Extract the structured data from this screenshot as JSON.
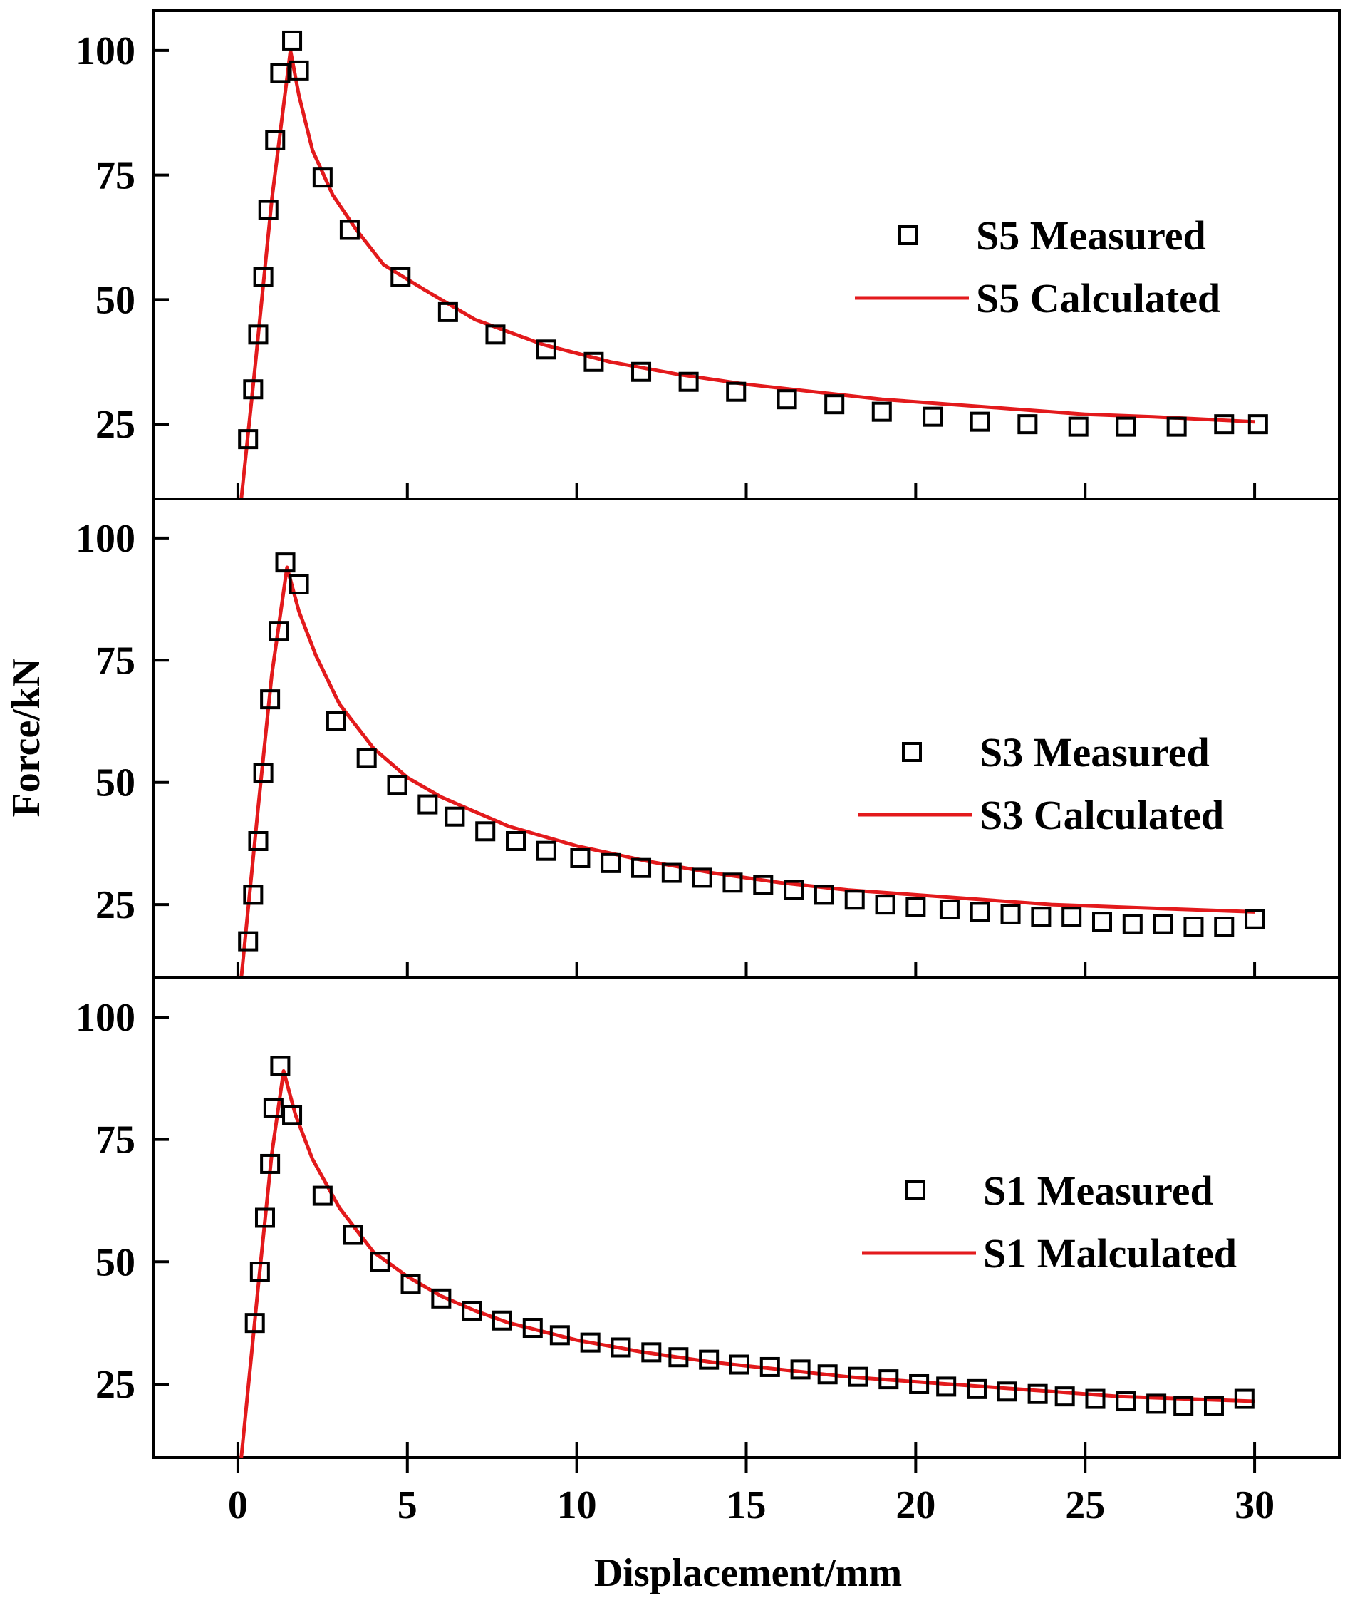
{
  "chart_data": {
    "type": "scatter",
    "xlabel": "Displacement/mm",
    "ylabel": "Force/kN",
    "x_ticks": [
      "0",
      "5",
      "10",
      "15",
      "20",
      "25",
      "30"
    ],
    "y_ticks": [
      "25",
      "50",
      "75",
      "100"
    ],
    "xlim": [
      -2.5,
      32.5
    ],
    "colors": {
      "measured": "#000000",
      "calculated": "#e31a1c"
    },
    "panels": [
      {
        "name": "S5",
        "ylim": [
          10,
          108
        ],
        "legend": {
          "measured": "S5 Measured",
          "calculated": "S5 Calculated"
        },
        "measured": {
          "x": [
            0.3,
            0.45,
            0.6,
            0.75,
            0.9,
            1.1,
            1.25,
            1.6,
            1.8,
            2.5,
            3.3,
            4.8,
            6.2,
            7.6,
            9.1,
            10.5,
            11.9,
            13.3,
            14.7,
            16.2,
            17.6,
            19.0,
            20.5,
            21.9,
            23.3,
            24.8,
            26.2,
            27.7,
            29.1,
            30.1
          ],
          "y": [
            22,
            32,
            43,
            54.5,
            68,
            82,
            95.5,
            102,
            96,
            74.5,
            64,
            54.5,
            47.5,
            43,
            40,
            37.5,
            35.5,
            33.5,
            31.5,
            30,
            29,
            27.5,
            26.5,
            25.5,
            25,
            24.5,
            24.5,
            24.5,
            25,
            25
          ]
        },
        "calculated": {
          "x": [
            0.1,
            0.5,
            1.0,
            1.55,
            1.8,
            2.2,
            2.8,
            3.5,
            4.3,
            5.5,
            7.0,
            9.0,
            11.0,
            13.0,
            15.0,
            17.0,
            19.0,
            21.0,
            23.0,
            25.0,
            27.0,
            30.0
          ],
          "y": [
            10,
            36,
            70,
            100,
            91,
            80,
            71,
            64,
            57,
            52,
            46,
            41,
            37.5,
            35,
            33,
            31.5,
            30,
            29,
            28,
            27,
            26.5,
            25.5
          ]
        }
      },
      {
        "name": "S3",
        "ylim": [
          10,
          108
        ],
        "legend": {
          "measured": "S3  Measured",
          "calculated": "S3  Calculated"
        },
        "measured": {
          "x": [
            0.3,
            0.45,
            0.6,
            0.75,
            0.95,
            1.2,
            1.4,
            1.8,
            2.9,
            3.8,
            4.7,
            5.6,
            6.4,
            7.3,
            8.2,
            9.1,
            10.1,
            11.0,
            11.9,
            12.8,
            13.7,
            14.6,
            15.5,
            16.4,
            17.3,
            18.2,
            19.1,
            20.0,
            21.0,
            21.9,
            22.8,
            23.7,
            24.6,
            25.5,
            26.4,
            27.3,
            28.2,
            29.1,
            30.0
          ],
          "y": [
            17.5,
            27,
            38,
            52,
            67,
            81,
            95,
            90.5,
            62.5,
            55,
            49.5,
            45.5,
            43,
            40,
            38,
            36,
            34.5,
            33.5,
            32.5,
            31.5,
            30.5,
            29.5,
            29,
            28,
            27,
            26,
            25,
            24.5,
            24,
            23.5,
            23,
            22.5,
            22.5,
            21.5,
            21,
            21,
            20.5,
            20.5,
            22
          ]
        },
        "calculated": {
          "x": [
            0.1,
            0.6,
            1.0,
            1.45,
            1.8,
            2.3,
            3.0,
            4.0,
            5.0,
            6.0,
            7.0,
            8.0,
            10.0,
            12.0,
            14.0,
            16.0,
            18.0,
            20.0,
            22.0,
            24.0,
            26.0,
            28.0,
            30.0
          ],
          "y": [
            10,
            45,
            72,
            94,
            85,
            76,
            66,
            57,
            51,
            47,
            44,
            41,
            37,
            34,
            31.5,
            29.5,
            28,
            27,
            26,
            25,
            24.5,
            24,
            23.5
          ]
        }
      },
      {
        "name": "S1",
        "ylim": [
          10,
          108
        ],
        "legend": {
          "measured": "S1 Measured",
          "calculated": "S1 Malculated"
        },
        "measured": {
          "x": [
            0.5,
            0.65,
            0.8,
            0.95,
            1.05,
            1.25,
            1.6,
            2.5,
            3.4,
            4.2,
            5.1,
            6.0,
            6.9,
            7.8,
            8.7,
            9.5,
            10.4,
            11.3,
            12.2,
            13.0,
            13.9,
            14.8,
            15.7,
            16.6,
            17.4,
            18.3,
            19.2,
            20.1,
            20.9,
            21.8,
            22.7,
            23.6,
            24.4,
            25.3,
            26.2,
            27.1,
            27.9,
            28.8,
            29.7
          ],
          "y": [
            37.5,
            48,
            59,
            70,
            81.5,
            90,
            80,
            63.5,
            55.5,
            50,
            45.5,
            42.5,
            40,
            38,
            36.5,
            35,
            33.5,
            32.5,
            31.5,
            30.5,
            30,
            29,
            28.5,
            28,
            27,
            26.5,
            26,
            25,
            24.5,
            24,
            23.5,
            23,
            22.5,
            22,
            21.5,
            21,
            20.5,
            20.5,
            22
          ]
        },
        "calculated": {
          "x": [
            0.1,
            0.6,
            1.0,
            1.35,
            1.7,
            2.2,
            3.0,
            4.0,
            5.0,
            6.0,
            7.0,
            8.0,
            10.0,
            12.0,
            14.0,
            16.0,
            18.0,
            20.0,
            22.0,
            24.0,
            26.0,
            28.0,
            30.0
          ],
          "y": [
            10,
            45,
            72,
            89,
            80,
            71,
            61,
            52,
            47,
            43,
            40,
            37.5,
            34,
            31.5,
            29.5,
            28,
            26.5,
            25.5,
            24.5,
            23.5,
            22.5,
            22,
            21.5
          ]
        }
      }
    ]
  }
}
